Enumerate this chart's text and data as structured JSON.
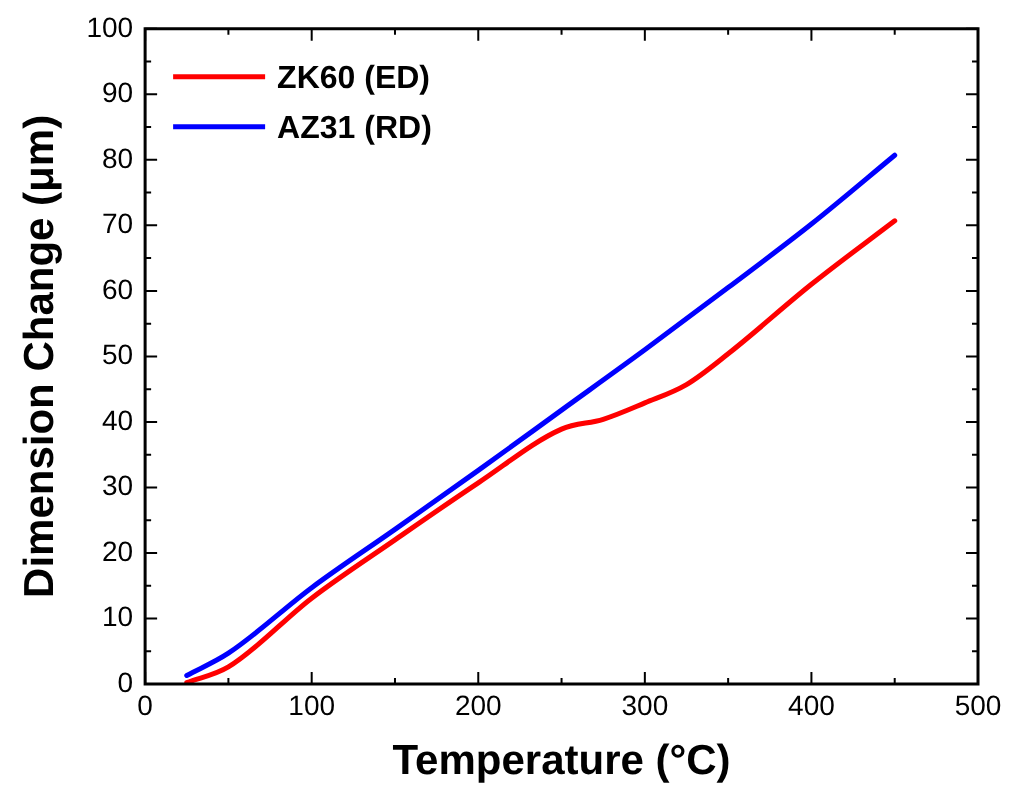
{
  "chart_data": {
    "type": "line",
    "xlabel": "Temperature (°C)",
    "ylabel": "Dimension Change (μm)",
    "xlim": [
      0,
      500
    ],
    "xticks": [
      0,
      100,
      200,
      300,
      400,
      500
    ],
    "ylim": [
      0,
      100
    ],
    "yticks": [
      0,
      10,
      20,
      30,
      40,
      50,
      60,
      70,
      80,
      90,
      100
    ],
    "grid": false,
    "legend": "top left",
    "marker": "none",
    "line_style": "solid",
    "series": [
      {
        "name": "ZK60 (ED)",
        "color": "#ff0000",
        "x": [
          25,
          50,
          100,
          150,
          200,
          250,
          275,
          300,
          325,
          350,
          400,
          450
        ],
        "values": [
          0.2,
          2.6,
          13.1,
          22,
          30.7,
          38.9,
          40.4,
          42.9,
          45.7,
          50.4,
          61,
          70.7
        ]
      },
      {
        "name": "AZ31 (RD)",
        "color": "#0000ff",
        "x": [
          25,
          50,
          100,
          150,
          200,
          250,
          300,
          350,
          400,
          450
        ],
        "values": [
          1.3,
          4.7,
          14.7,
          23.6,
          32.6,
          41.8,
          51,
          60.5,
          70.2,
          80.7
        ]
      }
    ]
  }
}
